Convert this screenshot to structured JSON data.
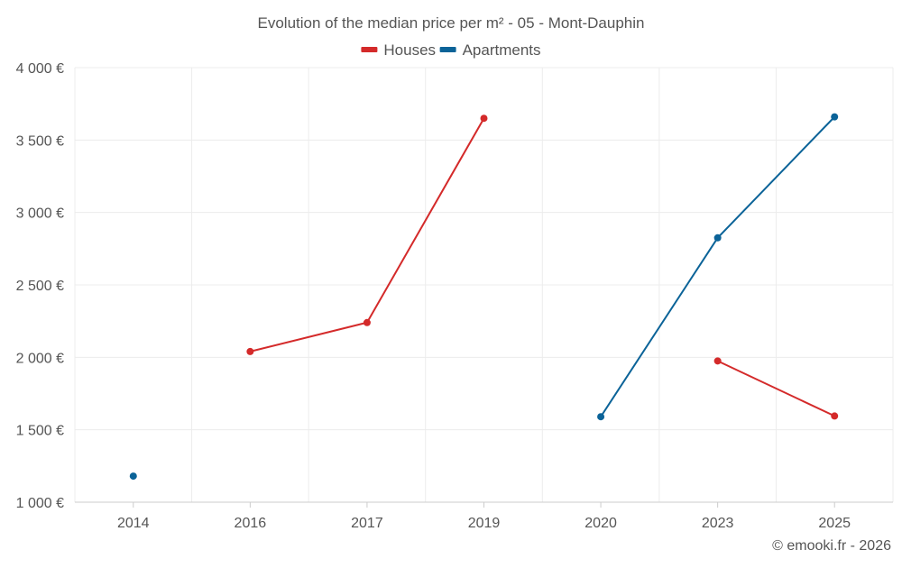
{
  "chart_data": {
    "type": "line",
    "title": "Evolution of the median price per m² - 05 - Mont-Dauphin",
    "xlabel": "",
    "ylabel": "",
    "categories": [
      "2014",
      "2016",
      "2017",
      "2019",
      "2020",
      "2023",
      "2025"
    ],
    "ylim": [
      1000,
      4000
    ],
    "yticks": [
      1000,
      1500,
      2000,
      2500,
      3000,
      3500,
      4000
    ],
    "ytick_labels": [
      "1 000 €",
      "1 500 €",
      "2 000 €",
      "2 500 €",
      "3 000 €",
      "3 500 €",
      "4 000 €"
    ],
    "grid": true,
    "legend_position": "top-center",
    "series": [
      {
        "name": "Houses",
        "color": "#d42a2a",
        "values": [
          null,
          2040,
          2240,
          3650,
          null,
          1975,
          1595
        ]
      },
      {
        "name": "Apartments",
        "color": "#0b6398",
        "values": [
          1180,
          null,
          null,
          null,
          1590,
          2825,
          3660
        ]
      }
    ],
    "credit": "© emooki.fr - 2026"
  },
  "colors": {
    "grid": "#ececec",
    "axis": "#cccccc",
    "text": "#555555"
  }
}
